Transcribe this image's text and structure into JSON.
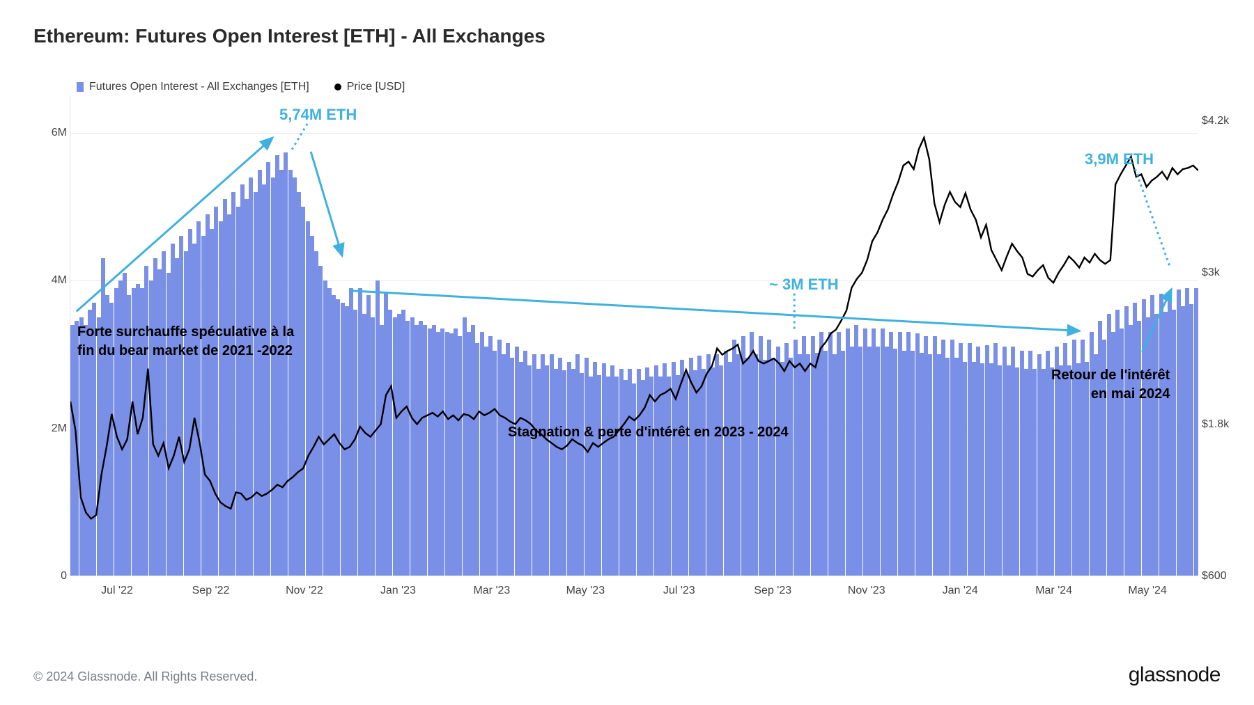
{
  "title": "Ethereum: Futures Open Interest [ETH] - All Exchanges",
  "legend": {
    "series1": "Futures Open Interest - All Exchanges [ETH]",
    "series2": "Price [USD]"
  },
  "footer": "© 2024 Glassnode. All Rights Reserved.",
  "brand": "glassnode",
  "chart": {
    "type": "bar+line",
    "bar_color": "#7a8fe6",
    "line_color": "#000000",
    "line_width": 2.4,
    "grid_color": "#e8eaee",
    "background": "#ffffff",
    "y_left": {
      "min": 0,
      "max": 6500000,
      "ticks": [
        0,
        2000000,
        4000000,
        6000000
      ],
      "labels": [
        "0",
        "2M",
        "4M",
        "6M"
      ]
    },
    "y_right": {
      "min": 600,
      "max": 4400,
      "ticks": [
        600,
        1800,
        3000,
        4200
      ],
      "labels": [
        "$600",
        "$1.8k",
        "$3k",
        "$4.2k"
      ]
    },
    "x_labels": [
      "Jul '22",
      "Sep '22",
      "Nov '22",
      "Jan '23",
      "Mar '23",
      "May '23",
      "Jul '23",
      "Sep '23",
      "Nov '23",
      "Jan '24",
      "Mar '24",
      "May '24"
    ],
    "x_positions_pct": [
      4.2,
      12.5,
      20.8,
      29.1,
      37.4,
      45.7,
      54.0,
      62.3,
      70.6,
      78.9,
      87.2,
      95.5
    ],
    "oi_values_millions": [
      3.4,
      3.45,
      3.5,
      3.4,
      3.6,
      3.7,
      3.5,
      4.3,
      3.8,
      3.7,
      3.9,
      4.0,
      4.1,
      3.8,
      3.9,
      3.95,
      3.9,
      4.2,
      4.0,
      4.3,
      4.15,
      4.4,
      4.1,
      4.5,
      4.3,
      4.6,
      4.4,
      4.7,
      4.5,
      4.8,
      4.6,
      4.9,
      4.7,
      5.0,
      4.8,
      5.1,
      4.9,
      5.2,
      5.0,
      5.3,
      5.1,
      5.4,
      5.2,
      5.5,
      5.3,
      5.6,
      5.4,
      5.7,
      5.5,
      5.74,
      5.5,
      5.4,
      5.2,
      5.0,
      4.8,
      4.6,
      4.4,
      4.2,
      4.0,
      3.9,
      3.8,
      3.75,
      3.7,
      3.65,
      3.9,
      3.6,
      3.9,
      3.55,
      3.8,
      3.5,
      4.0,
      3.4,
      3.85,
      3.6,
      3.5,
      3.55,
      3.6,
      3.45,
      3.5,
      3.4,
      3.45,
      3.4,
      3.35,
      3.4,
      3.3,
      3.35,
      3.3,
      3.28,
      3.35,
      3.25,
      3.5,
      3.3,
      3.4,
      3.15,
      3.3,
      3.1,
      3.25,
      3.05,
      3.2,
      3.0,
      3.15,
      2.95,
      3.1,
      2.9,
      3.05,
      2.85,
      3.0,
      2.8,
      3.0,
      2.85,
      3.0,
      2.8,
      2.95,
      2.78,
      2.9,
      2.8,
      3.0,
      2.75,
      2.95,
      2.7,
      2.9,
      2.72,
      2.88,
      2.7,
      2.85,
      2.7,
      2.8,
      2.65,
      2.8,
      2.6,
      2.8,
      2.65,
      2.82,
      2.7,
      2.85,
      2.7,
      2.88,
      2.7,
      2.9,
      2.72,
      2.92,
      2.75,
      2.95,
      2.78,
      2.98,
      2.8,
      3.0,
      2.82,
      3.0,
      2.85,
      3.05,
      2.9,
      3.2,
      3.0,
      3.25,
      2.95,
      3.3,
      3.0,
      3.25,
      2.92,
      3.2,
      2.95,
      3.1,
      2.9,
      3.15,
      2.95,
      3.2,
      3.0,
      3.25,
      3.0,
      3.25,
      3.02,
      3.3,
      3.05,
      3.3,
      3.0,
      3.3,
      3.05,
      3.35,
      3.1,
      3.4,
      3.1,
      3.35,
      3.1,
      3.35,
      3.1,
      3.35,
      3.1,
      3.3,
      3.08,
      3.3,
      3.05,
      3.3,
      3.05,
      3.28,
      3.02,
      3.25,
      3.0,
      3.25,
      3.0,
      3.2,
      2.95,
      3.2,
      2.95,
      3.15,
      2.9,
      3.15,
      2.9,
      3.1,
      2.88,
      3.12,
      2.88,
      3.15,
      2.85,
      3.1,
      2.85,
      3.1,
      2.82,
      3.05,
      2.8,
      3.05,
      2.8,
      3.0,
      2.8,
      3.05,
      2.82,
      3.1,
      2.85,
      3.15,
      2.85,
      3.2,
      2.88,
      3.2,
      2.9,
      3.3,
      3.0,
      3.45,
      3.2,
      3.55,
      3.3,
      3.6,
      3.35,
      3.65,
      3.4,
      3.7,
      3.45,
      3.75,
      3.5,
      3.8,
      3.55,
      3.82,
      3.58,
      3.85,
      3.6,
      3.88,
      3.65,
      3.9,
      3.68,
      3.9
    ],
    "price_values_usd": [
      1980,
      1750,
      1220,
      1100,
      1050,
      1080,
      1400,
      1620,
      1880,
      1700,
      1600,
      1680,
      1980,
      1720,
      1850,
      2240,
      1640,
      1550,
      1650,
      1450,
      1550,
      1700,
      1500,
      1600,
      1850,
      1650,
      1400,
      1350,
      1250,
      1180,
      1150,
      1130,
      1260,
      1250,
      1200,
      1220,
      1260,
      1230,
      1250,
      1280,
      1320,
      1300,
      1350,
      1380,
      1420,
      1450,
      1550,
      1620,
      1700,
      1640,
      1680,
      1720,
      1650,
      1600,
      1620,
      1680,
      1780,
      1730,
      1700,
      1750,
      1800,
      2030,
      2100,
      1850,
      1900,
      1940,
      1850,
      1800,
      1850,
      1870,
      1890,
      1860,
      1900,
      1840,
      1870,
      1830,
      1880,
      1870,
      1840,
      1900,
      1870,
      1890,
      1920,
      1870,
      1850,
      1820,
      1800,
      1850,
      1830,
      1800,
      1750,
      1720,
      1680,
      1650,
      1620,
      1600,
      1630,
      1680,
      1650,
      1630,
      1580,
      1650,
      1620,
      1650,
      1680,
      1700,
      1750,
      1800,
      1860,
      1830,
      1870,
      1930,
      2030,
      1980,
      2030,
      2050,
      2080,
      2000,
      2120,
      2230,
      2130,
      2050,
      2100,
      2200,
      2260,
      2400,
      2350,
      2380,
      2400,
      2430,
      2280,
      2320,
      2380,
      2300,
      2280,
      2300,
      2320,
      2280,
      2220,
      2300,
      2250,
      2280,
      2220,
      2280,
      2250,
      2400,
      2450,
      2520,
      2550,
      2620,
      2700,
      2880,
      2950,
      3000,
      3100,
      3250,
      3320,
      3420,
      3500,
      3620,
      3720,
      3850,
      3880,
      3820,
      3980,
      4070,
      3900,
      3550,
      3400,
      3540,
      3640,
      3560,
      3520,
      3630,
      3500,
      3420,
      3280,
      3380,
      3180,
      3100,
      3020,
      3130,
      3230,
      3170,
      3120,
      2990,
      2970,
      3020,
      3060,
      2960,
      2920,
      3000,
      3060,
      3130,
      3090,
      3040,
      3120,
      3080,
      3150,
      3100,
      3070,
      3100,
      3700,
      3780,
      3850,
      3920,
      3760,
      3780,
      3680,
      3730,
      3760,
      3800,
      3740,
      3830,
      3780,
      3820,
      3830,
      3850,
      3810
    ]
  },
  "callouts": {
    "peak1": "5,74M ETH",
    "mid": "~ 3M ETH",
    "peak2": "3,9M ETH"
  },
  "annotations": {
    "a1_line1": "Forte surchauffe spéculative à la",
    "a1_line2": "fin du bear market de 2021 -2022",
    "a2": "Stagnation & perte d'intérêt en 2023 - 2024",
    "a3_line1": "Retour de l'intérêt",
    "a3_line2": "en mai 2024"
  },
  "arrow_color": "#3eb1e0"
}
